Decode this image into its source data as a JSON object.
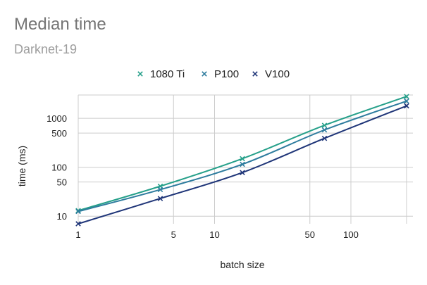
{
  "chart_data": {
    "type": "line",
    "title": "Median time",
    "subtitle": "Darknet-19",
    "xlabel": "batch size",
    "ylabel": "time (ms)",
    "x_scale": "log",
    "y_scale": "log",
    "xlim": [
      1,
      256
    ],
    "ylim": [
      7,
      3000
    ],
    "x_ticks": [
      1,
      5,
      10,
      50,
      100
    ],
    "y_ticks": [
      10,
      50,
      100,
      500,
      1000
    ],
    "grid": true,
    "legend_position": "top-center",
    "x": [
      1,
      4,
      16,
      64,
      256
    ],
    "series": [
      {
        "name": "1080 Ti",
        "color": "#26a08a",
        "values": [
          13,
          41,
          150,
          720,
          2800
        ]
      },
      {
        "name": "P100",
        "color": "#2e7c9e",
        "values": [
          12.5,
          35,
          115,
          580,
          2250
        ]
      },
      {
        "name": "V100",
        "color": "#1f3578",
        "values": [
          7,
          23,
          78,
          390,
          1800
        ]
      }
    ]
  }
}
